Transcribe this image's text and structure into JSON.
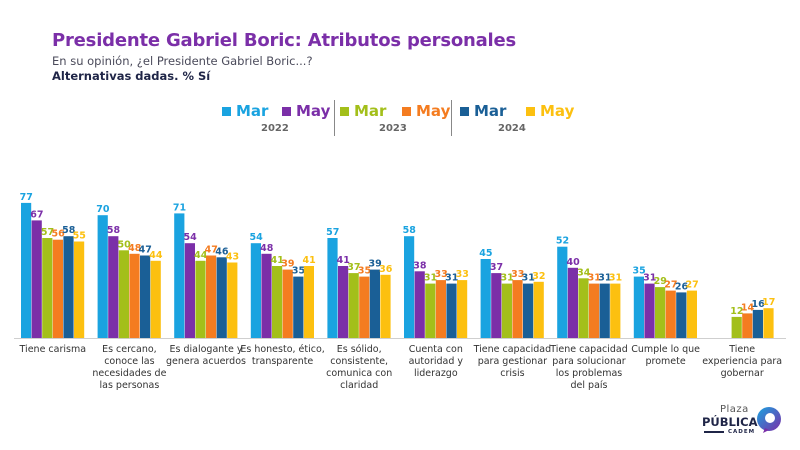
{
  "header": {
    "title": "Presidente Gabriel Boric: Atributos personales",
    "subtitle": "En su opinión, ¿el Presidente Gabriel Boric...?",
    "note": "Alternativas dadas. % Sí"
  },
  "legend": {
    "items": [
      {
        "label": "Mar",
        "color": "#1aa3e0"
      },
      {
        "label": "May",
        "color": "#7b2fa8"
      },
      {
        "label": "Mar",
        "color": "#a3bf1a"
      },
      {
        "label": "May",
        "color": "#f47c20"
      },
      {
        "label": "Mar",
        "color": "#1a5f96"
      },
      {
        "label": "May",
        "color": "#fcc010"
      }
    ],
    "years": [
      "2022",
      "2023",
      "2024"
    ]
  },
  "chart_data": {
    "type": "bar",
    "title": "Presidente Gabriel Boric: Atributos personales",
    "xlabel": "",
    "ylabel": "% Sí",
    "ylim": [
      0,
      80
    ],
    "grid": false,
    "legend_position": "top-center",
    "categories": [
      "Tiene carisma",
      "Es cercano, conoce las necesidades de las personas",
      "Es dialogante y genera acuerdos",
      "Es honesto, ético, transparente",
      "Es sólido, consistente, comunica con claridad",
      "Cuenta con autoridad y liderazgo",
      "Tiene capacidad para gestionar crisis",
      "Tiene capacidad para solucionar los problemas del país",
      "Cumple lo que promete",
      "Tiene experiencia para gobernar"
    ],
    "category_lines": [
      [
        "Tiene carisma"
      ],
      [
        "Es cercano,",
        "conoce las",
        "necesidades de",
        "las personas"
      ],
      [
        "Es dialogante y",
        "genera acuerdos"
      ],
      [
        "Es honesto, ético,",
        "transparente"
      ],
      [
        "Es sólido,",
        "consistente,",
        "comunica con",
        "claridad"
      ],
      [
        "Cuenta con",
        "autoridad y",
        "liderazgo"
      ],
      [
        "Tiene capacidad",
        "para gestionar",
        "crisis"
      ],
      [
        "Tiene capacidad",
        "para solucionar",
        "los problemas",
        "del país"
      ],
      [
        "Cumple lo que",
        "promete"
      ],
      [
        "Tiene",
        "experiencia para",
        "gobernar"
      ]
    ],
    "series": [
      {
        "name": "Mar 2022",
        "color": "#1aa3e0",
        "values": [
          77,
          70,
          71,
          54,
          57,
          58,
          45,
          52,
          35,
          null
        ]
      },
      {
        "name": "May 2022",
        "color": "#7b2fa8",
        "values": [
          67,
          58,
          54,
          48,
          41,
          38,
          37,
          40,
          31,
          null
        ]
      },
      {
        "name": "Mar 2023",
        "color": "#a3bf1a",
        "values": [
          57,
          50,
          44,
          41,
          37,
          31,
          31,
          34,
          29,
          12
        ]
      },
      {
        "name": "May 2023",
        "color": "#f47c20",
        "values": [
          56,
          48,
          47,
          39,
          35,
          33,
          33,
          31,
          27,
          14
        ]
      },
      {
        "name": "Mar 2024",
        "color": "#1a5f96",
        "values": [
          58,
          47,
          46,
          35,
          39,
          31,
          31,
          31,
          26,
          16
        ]
      },
      {
        "name": "May 2024",
        "color": "#fcc010",
        "values": [
          55,
          44,
          43,
          41,
          36,
          33,
          32,
          31,
          27,
          17
        ]
      }
    ]
  },
  "logo": {
    "line1": "Plaza",
    "line2": "PÚBLICA",
    "line3": "CADEM"
  }
}
